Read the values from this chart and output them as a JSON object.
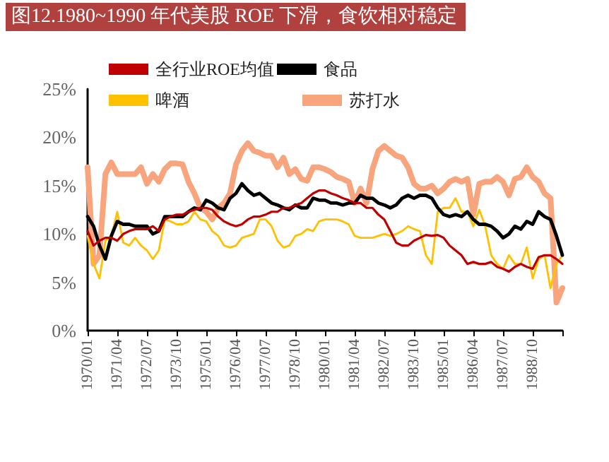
{
  "chart_data": {
    "type": "line",
    "title": "图12.1980~1990 年代美股 ROE 下滑，食饮相对稳定",
    "categories": [
      "1970/01",
      null,
      null,
      null,
      null,
      "1971/04",
      null,
      null,
      null,
      null,
      "1972/07",
      null,
      null,
      null,
      null,
      "1973/10",
      null,
      null,
      null,
      null,
      "1975/01",
      null,
      null,
      null,
      null,
      "1976/04",
      null,
      null,
      null,
      null,
      "1977/07",
      null,
      null,
      null,
      null,
      "1978/10",
      null,
      null,
      null,
      null,
      "1980/01",
      null,
      null,
      null,
      null,
      "1981/04",
      null,
      null,
      null,
      null,
      "1982/07",
      null,
      null,
      null,
      null,
      "1983/10",
      null,
      null,
      null,
      null,
      "1985/01",
      null,
      null,
      null,
      null,
      "1986/04",
      null,
      null,
      null,
      null,
      "1987/07",
      null,
      null,
      null,
      null,
      "1988/10",
      null,
      null,
      null,
      null,
      null
    ],
    "series": [
      {
        "name": "全行业ROE均值",
        "color": "#c00000",
        "values": [
          10.3,
          8.8,
          9.3,
          9.6,
          9.6,
          9.3,
          10.0,
          10.3,
          10.5,
          10.5,
          10.5,
          10.8,
          10.3,
          11.5,
          11.8,
          12.0,
          12.0,
          12.3,
          12.5,
          12.7,
          12.7,
          12.5,
          11.8,
          11.3,
          11.0,
          10.8,
          11.0,
          11.5,
          11.8,
          11.8,
          12.0,
          12.3,
          12.3,
          12.7,
          12.7,
          13.0,
          13.2,
          13.7,
          14.2,
          14.5,
          14.5,
          14.2,
          14.0,
          13.7,
          13.5,
          13.2,
          13.2,
          12.7,
          12.7,
          12.0,
          11.5,
          10.3,
          9.1,
          8.8,
          8.8,
          9.3,
          9.6,
          9.9,
          9.8,
          9.9,
          9.6,
          8.8,
          8.3,
          7.8,
          6.9,
          7.1,
          6.9,
          6.9,
          7.1,
          6.6,
          6.4,
          6.1,
          6.6,
          6.9,
          6.6,
          6.4,
          7.6,
          7.8,
          7.8,
          7.4,
          6.9
        ]
      },
      {
        "name": "食品",
        "color": "#000000",
        "values": [
          11.8,
          10.8,
          8.8,
          7.4,
          9.8,
          11.3,
          11.0,
          11.0,
          10.8,
          10.8,
          10.8,
          10.0,
          10.3,
          11.8,
          11.8,
          11.8,
          11.8,
          12.3,
          12.7,
          12.5,
          13.5,
          13.2,
          12.7,
          12.5,
          13.7,
          14.2,
          15.2,
          14.5,
          14.0,
          14.2,
          13.7,
          13.2,
          13.0,
          12.7,
          12.5,
          13.0,
          12.7,
          12.7,
          13.7,
          13.5,
          13.5,
          13.2,
          13.2,
          13.0,
          13.2,
          13.2,
          14.0,
          13.7,
          13.7,
          13.2,
          13.0,
          12.7,
          13.0,
          13.7,
          14.0,
          13.7,
          14.0,
          14.0,
          13.7,
          12.7,
          12.0,
          11.8,
          12.0,
          11.8,
          12.3,
          11.5,
          11.0,
          11.0,
          10.8,
          10.3,
          9.6,
          10.0,
          10.8,
          10.5,
          11.3,
          11.0,
          12.3,
          11.8,
          11.5,
          9.8,
          7.8
        ]
      },
      {
        "name": "啤酒",
        "color": "#ffc000",
        "values": [
          9.8,
          6.9,
          5.4,
          9.3,
          9.8,
          12.3,
          9.1,
          8.8,
          9.6,
          8.8,
          8.3,
          7.4,
          8.3,
          11.5,
          11.3,
          11.0,
          11.0,
          11.3,
          12.3,
          11.5,
          11.3,
          10.3,
          9.8,
          8.8,
          8.6,
          8.8,
          9.6,
          9.8,
          10.0,
          11.5,
          11.5,
          10.8,
          9.3,
          8.6,
          8.8,
          9.8,
          10.0,
          10.5,
          10.3,
          11.3,
          11.5,
          11.5,
          11.5,
          11.3,
          11.0,
          9.8,
          9.6,
          9.6,
          9.6,
          9.8,
          10.0,
          9.8,
          10.0,
          10.3,
          10.8,
          10.5,
          10.3,
          7.8,
          6.9,
          12.3,
          12.7,
          12.7,
          13.7,
          12.3,
          12.3,
          10.8,
          12.5,
          10.8,
          7.8,
          6.9,
          6.4,
          7.8,
          6.9,
          6.9,
          8.6,
          5.4,
          7.4,
          7.8,
          4.4,
          6.9,
          7.8
        ]
      },
      {
        "name": "苏打水",
        "color": "#f8a57e",
        "values": [
          16.9,
          6.9,
          7.8,
          16.2,
          17.4,
          16.2,
          16.2,
          16.2,
          16.2,
          16.9,
          15.2,
          16.2,
          15.4,
          16.7,
          17.3,
          17.3,
          17.2,
          15.4,
          14.2,
          12.7,
          12.3,
          11.5,
          12.7,
          13.2,
          14.2,
          17.2,
          18.6,
          19.4,
          18.6,
          18.4,
          18.1,
          18.1,
          16.9,
          17.9,
          16.2,
          16.7,
          15.7,
          15.5,
          16.9,
          16.9,
          16.7,
          16.4,
          15.9,
          15.7,
          15.4,
          13.2,
          14.7,
          13.2,
          16.7,
          18.6,
          19.1,
          18.6,
          18.1,
          17.9,
          16.9,
          15.2,
          14.7,
          14.7,
          15.0,
          14.2,
          14.7,
          15.4,
          15.7,
          15.4,
          15.7,
          12.0,
          15.2,
          15.4,
          15.4,
          15.9,
          15.4,
          14.0,
          15.7,
          15.9,
          16.9,
          15.9,
          15.4,
          14.2,
          13.7,
          2.9,
          4.4
        ]
      }
    ],
    "ylim": [
      0,
      25
    ],
    "yticks": [
      {
        "value": 0,
        "label": "0%"
      },
      {
        "value": 5,
        "label": "5%"
      },
      {
        "value": 10,
        "label": "10%"
      },
      {
        "value": 15,
        "label": "15%"
      },
      {
        "value": 20,
        "label": "20%"
      },
      {
        "value": 25,
        "label": "25%"
      }
    ],
    "legend": "top left",
    "grid": false,
    "marker": "none",
    "line_style": "solid"
  }
}
